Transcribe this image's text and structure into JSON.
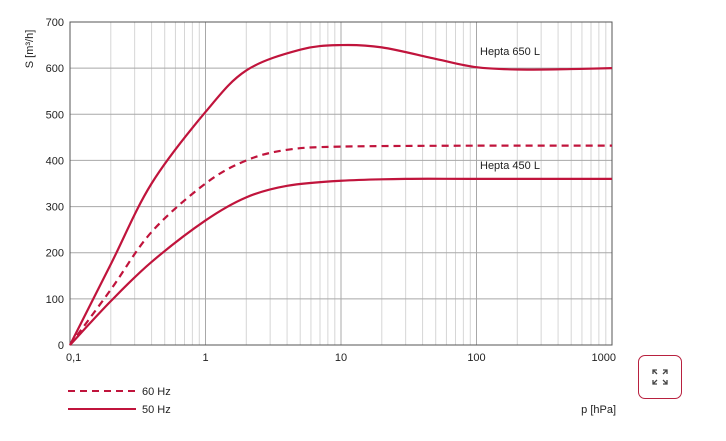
{
  "chart_data": {
    "type": "line",
    "xscale": "log",
    "xlim": [
      0.1,
      1000
    ],
    "ylim": [
      0,
      700
    ],
    "xlabel": "p [hPa]",
    "ylabel": "S [m³/h]",
    "xticks": [
      {
        "value": 0.1,
        "label": "0,1"
      },
      {
        "value": 1,
        "label": "1"
      },
      {
        "value": 10,
        "label": "10"
      },
      {
        "value": 100,
        "label": "100"
      },
      {
        "value": 1000,
        "label": "1000"
      }
    ],
    "yticks": [
      0,
      100,
      200,
      300,
      400,
      500,
      600,
      700
    ],
    "grid": true,
    "color": "#c0143c",
    "annotations": [
      {
        "text": "Hepta 650 L",
        "x": 100,
        "y": 600
      },
      {
        "text": "Hepta 450 L",
        "x": 100,
        "y": 360
      }
    ],
    "legend": {
      "placement": "bottom-left",
      "entries": [
        {
          "label": "60 Hz",
          "style": "dashed"
        },
        {
          "label": "50 Hz",
          "style": "solid"
        }
      ]
    },
    "series": [
      {
        "style": "solid",
        "points": [
          [
            0.1,
            0
          ],
          [
            0.2,
            175
          ],
          [
            0.4,
            350
          ],
          [
            1,
            505
          ],
          [
            2,
            595
          ],
          [
            5,
            640
          ],
          [
            10,
            650
          ],
          [
            20,
            645
          ],
          [
            50,
            620
          ],
          [
            100,
            602
          ],
          [
            200,
            597
          ],
          [
            500,
            598
          ],
          [
            1000,
            600
          ]
        ]
      },
      {
        "style": "dashed",
        "points": [
          [
            0.1,
            0
          ],
          [
            0.2,
            120
          ],
          [
            0.4,
            245
          ],
          [
            1,
            350
          ],
          [
            2,
            400
          ],
          [
            4,
            423
          ],
          [
            10,
            430
          ],
          [
            100,
            432
          ],
          [
            1000,
            432
          ]
        ]
      },
      {
        "style": "solid",
        "points": [
          [
            0.1,
            0
          ],
          [
            0.2,
            95
          ],
          [
            0.4,
            180
          ],
          [
            1,
            270
          ],
          [
            2,
            320
          ],
          [
            4,
            345
          ],
          [
            10,
            356
          ],
          [
            30,
            360
          ],
          [
            100,
            360
          ],
          [
            1000,
            360
          ]
        ]
      }
    ]
  },
  "controls": {
    "expand_icon": "expand-arrows-icon"
  }
}
